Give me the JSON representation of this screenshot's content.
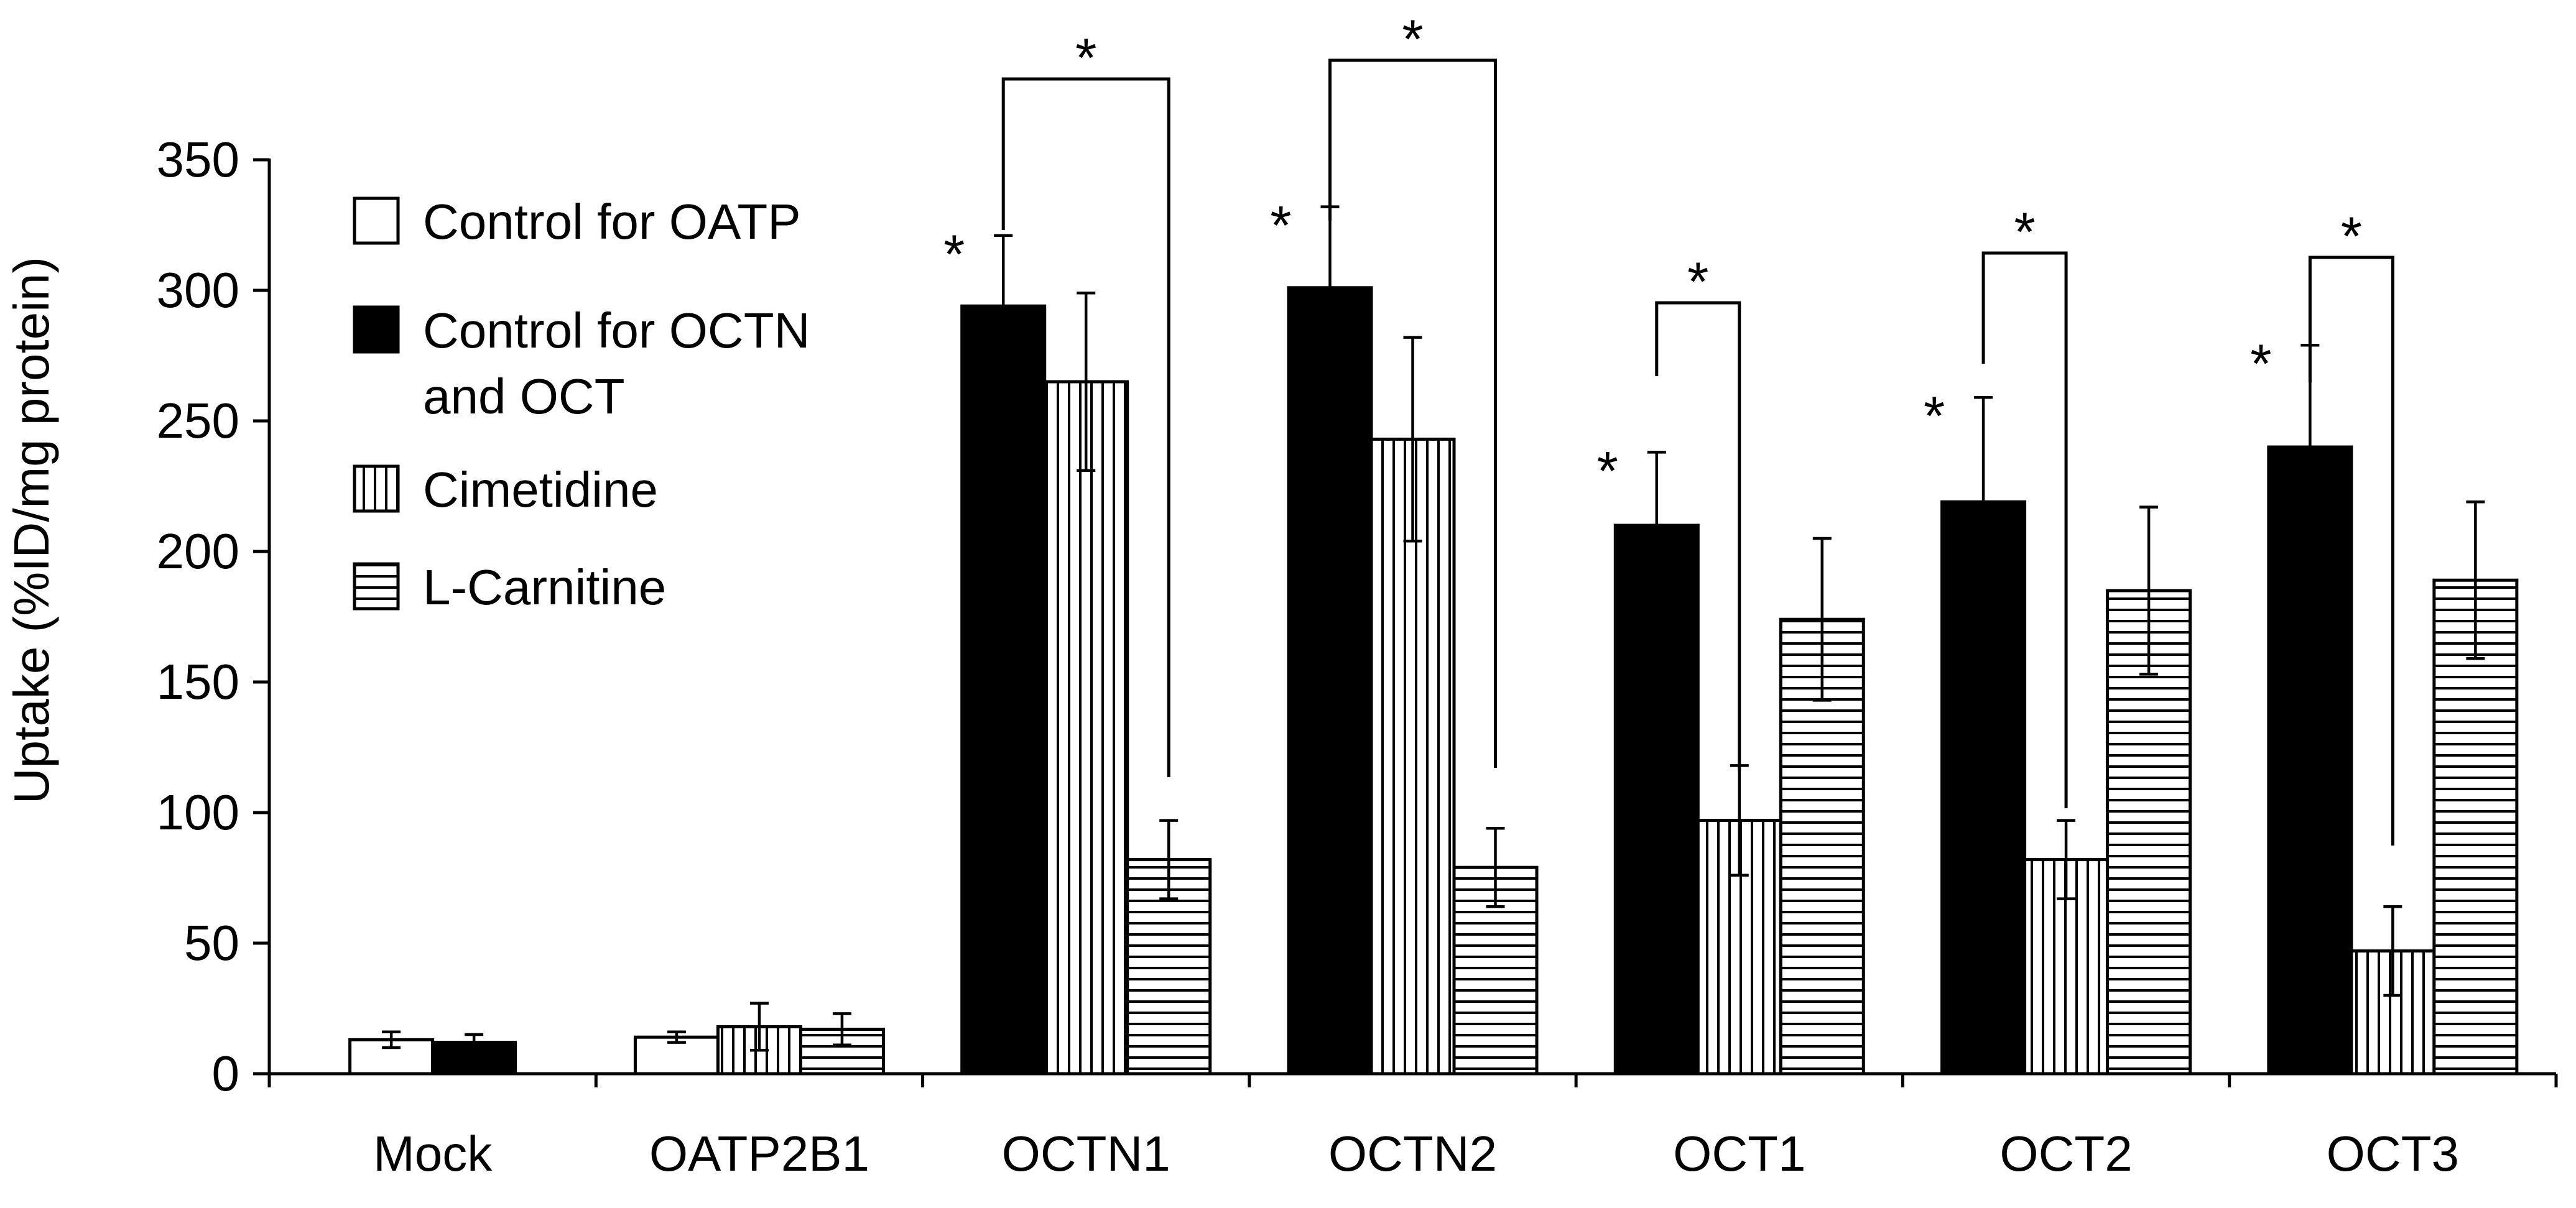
{
  "chart_data": {
    "type": "bar",
    "title": "",
    "xlabel": "",
    "ylabel": "Uptake (%ID/mg protein)",
    "ylim": [
      0,
      350
    ],
    "yticks": [
      0,
      50,
      100,
      150,
      200,
      250,
      300,
      350
    ],
    "categories": [
      "Mock",
      "OATP2B1",
      "OCTN1",
      "OCTN2",
      "OCT1",
      "OCT2",
      "OCT3"
    ],
    "legend_position": "top-left",
    "series": [
      {
        "key": "oatp_ctrl",
        "name": "Control for OATP",
        "pattern": "open",
        "values": [
          13,
          14,
          null,
          null,
          null,
          null,
          null
        ],
        "errors": [
          3,
          2,
          null,
          null,
          null,
          null,
          null
        ]
      },
      {
        "key": "octn_ctrl",
        "name": "Control for OCTN and OCT",
        "name_lines": [
          "Control for OCTN",
          "and OCT"
        ],
        "pattern": "solid",
        "values": [
          12,
          null,
          294,
          301,
          210,
          219,
          240
        ],
        "errors": [
          3,
          null,
          27,
          31,
          28,
          40,
          39
        ]
      },
      {
        "key": "cimetidine",
        "name": "Cimetidine",
        "pattern": "vertical",
        "values": [
          null,
          18,
          265,
          243,
          97,
          82,
          47
        ],
        "errors": [
          null,
          9,
          34,
          39,
          21,
          15,
          17
        ]
      },
      {
        "key": "carnitine",
        "name": "L-Carnitine",
        "pattern": "horizontal",
        "values": [
          null,
          17,
          82,
          79,
          174,
          185,
          189
        ],
        "errors": [
          null,
          6,
          15,
          15,
          31,
          32,
          30
        ]
      }
    ],
    "significance_label": "*",
    "significance_brackets": [
      {
        "category": "OCTN1",
        "from": "octn_ctrl",
        "to": "carnitine",
        "label": "*"
      },
      {
        "category": "OCTN2",
        "from": "octn_ctrl",
        "to": "carnitine",
        "label": "*"
      },
      {
        "category": "OCT1",
        "from": "octn_ctrl",
        "to": "cimetidine",
        "label": "*"
      },
      {
        "category": "OCT2",
        "from": "octn_ctrl",
        "to": "cimetidine",
        "label": "*"
      },
      {
        "category": "OCT3",
        "from": "octn_ctrl",
        "to": "cimetidine",
        "label": "*"
      }
    ],
    "significance_marks": [
      {
        "category": "OCTN1",
        "series": "octn_ctrl",
        "label": "*"
      },
      {
        "category": "OCTN2",
        "series": "octn_ctrl",
        "label": "*"
      },
      {
        "category": "OCT1",
        "series": "octn_ctrl",
        "label": "*"
      },
      {
        "category": "OCT2",
        "series": "octn_ctrl",
        "label": "*"
      },
      {
        "category": "OCT3",
        "series": "octn_ctrl",
        "label": "*"
      }
    ]
  }
}
